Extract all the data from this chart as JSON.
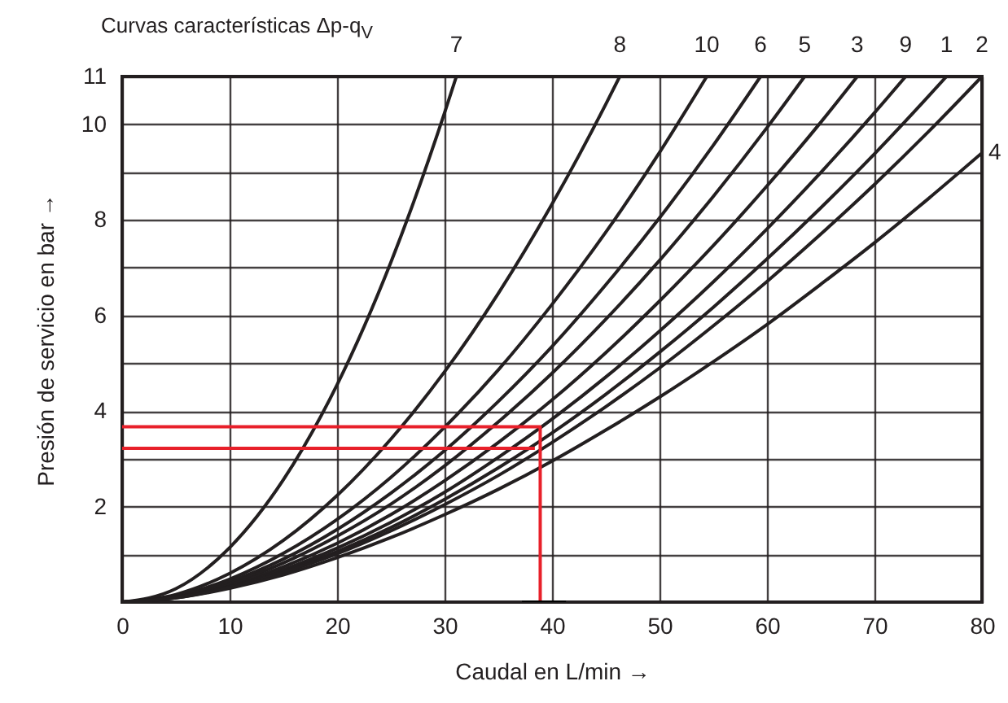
{
  "chart_data": {
    "type": "line",
    "title": "Curvas características Δp-q$_{V}$",
    "xlabel": "Caudal en L/min  →",
    "ylabel": "Presión de servicio en bar  →",
    "xlim": [
      0,
      80
    ],
    "ylim": [
      0,
      11
    ],
    "xticks": [
      0,
      10,
      20,
      30,
      40,
      50,
      60,
      70,
      80
    ],
    "yticks": [
      {
        "value": 1,
        "label": null
      },
      2,
      {
        "value": 3,
        "label": null
      },
      4,
      {
        "value": 5,
        "label": null
      },
      6,
      {
        "value": 7,
        "label": null
      },
      8,
      {
        "value": 9,
        "label": null
      },
      10,
      11
    ],
    "grid": true,
    "series": [
      {
        "name": "7",
        "color": "#231f20",
        "x": [
          0,
          5,
          10,
          15,
          20,
          25,
          30,
          31.1
        ],
        "values": [
          0,
          0.28,
          1.14,
          2.56,
          4.55,
          7.11,
          10.24,
          11
        ]
      },
      {
        "name": "8",
        "color": "#231f20",
        "x": [
          0,
          5,
          10,
          15,
          20,
          25,
          30,
          35,
          40,
          45,
          46.3
        ],
        "values": [
          0,
          0.16,
          0.6,
          1.29,
          2.23,
          3.41,
          4.82,
          6.46,
          8.33,
          10.42,
          11
        ]
      },
      {
        "name": "10",
        "color": "#231f20",
        "x": [
          0,
          5,
          10,
          15,
          20,
          25,
          30,
          35,
          40,
          45,
          50,
          54.4
        ],
        "values": [
          0,
          0.13,
          0.48,
          1.02,
          1.73,
          2.61,
          3.66,
          4.86,
          6.23,
          7.74,
          9.41,
          11
        ]
      },
      {
        "name": "6",
        "color": "#231f20",
        "x": [
          0,
          5,
          10,
          15,
          20,
          25,
          30,
          35,
          40,
          45,
          50,
          55,
          59.4
        ],
        "values": [
          0,
          0.12,
          0.43,
          0.9,
          1.52,
          2.28,
          3.17,
          4.2,
          5.35,
          6.64,
          8.04,
          9.56,
          11
        ]
      },
      {
        "name": "5",
        "color": "#231f20",
        "x": [
          0,
          5,
          10,
          15,
          20,
          25,
          30,
          35,
          40,
          45,
          50,
          55,
          60,
          63.5
        ],
        "values": [
          0,
          0.11,
          0.39,
          0.82,
          1.38,
          2.05,
          2.85,
          3.77,
          4.79,
          5.92,
          7.15,
          8.49,
          9.93,
          11
        ]
      },
      {
        "name": "3",
        "color": "#231f20",
        "x": [
          0,
          5,
          10,
          15,
          20,
          25,
          30,
          35,
          40,
          45,
          50,
          55,
          60,
          65,
          68.4
        ],
        "values": [
          0,
          0.1,
          0.36,
          0.74,
          1.23,
          1.83,
          2.54,
          3.34,
          4.23,
          5.22,
          6.3,
          7.46,
          8.71,
          10.04,
          11
        ]
      },
      {
        "name": "9",
        "color": "#231f20",
        "x": [
          0,
          5,
          10,
          15,
          20,
          25,
          30,
          35,
          40,
          45,
          50,
          55,
          60,
          65,
          70,
          72.9
        ],
        "values": [
          0,
          0.1,
          0.33,
          0.68,
          1.13,
          1.67,
          2.3,
          3.03,
          3.83,
          4.71,
          5.67,
          6.7,
          7.81,
          8.99,
          10.24,
          11
        ]
      },
      {
        "name": "1",
        "color": "#231f20",
        "x": [
          0,
          5,
          10,
          15,
          20,
          25,
          30,
          35,
          40,
          45,
          50,
          55,
          60,
          65,
          70,
          75,
          76.7
        ],
        "values": [
          0,
          0.1,
          0.32,
          0.64,
          1.06,
          1.56,
          2.15,
          2.81,
          3.54,
          4.35,
          5.23,
          6.17,
          7.18,
          8.25,
          9.38,
          10.58,
          11
        ]
      },
      {
        "name": "2",
        "color": "#231f20",
        "x": [
          0,
          5,
          10,
          15,
          20,
          25,
          30,
          35,
          40,
          45,
          50,
          55,
          60,
          65,
          70,
          75,
          80
        ],
        "values": [
          0,
          0.09,
          0.31,
          0.62,
          1.01,
          1.49,
          2.04,
          2.65,
          3.34,
          4.09,
          4.9,
          5.78,
          6.71,
          7.7,
          8.74,
          9.84,
          11
        ]
      },
      {
        "name": "4",
        "color": "#231f20",
        "x": [
          0,
          5,
          10,
          15,
          20,
          25,
          30,
          35,
          40,
          45,
          50,
          55,
          60,
          65,
          70,
          75,
          80
        ],
        "values": [
          0,
          0.09,
          0.29,
          0.57,
          0.93,
          1.35,
          1.83,
          2.36,
          2.95,
          3.6,
          4.29,
          5.03,
          5.81,
          6.65,
          7.52,
          8.44,
          9.4
        ]
      },
      {
        "color": "#e8202a",
        "x": [
          0,
          38.9,
          38.9
        ],
        "values": [
          3.67,
          3.67,
          0
        ]
      },
      {
        "color": "#e8202a",
        "x": [
          0,
          38.4
        ],
        "values": [
          3.22,
          3.22
        ]
      },
      {
        "color": "#000000",
        "x": [
          37.2,
          41.3
        ],
        "values": [
          0,
          0
        ]
      }
    ]
  }
}
